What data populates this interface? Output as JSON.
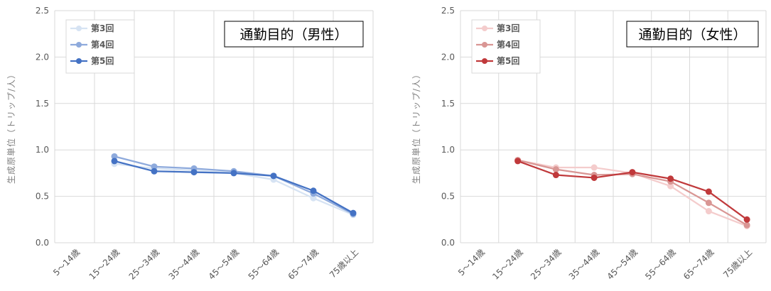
{
  "charts": [
    {
      "title": "通勤目的（男性）",
      "ylabel": "生成原単位（トリップ/人）"
    },
    {
      "title": "通勤目的（女性）",
      "ylabel": "生成原単位（トリップ/人）"
    }
  ],
  "chart_data": [
    {
      "type": "line",
      "title": "通勤目的（男性）",
      "xlabel": "",
      "ylabel": "生成原単位（トリップ/人）",
      "ylim": [
        0,
        2.5
      ],
      "yticks": [
        "0.0",
        "0.5",
        "1.0",
        "1.5",
        "2.0",
        "2.5"
      ],
      "categories": [
        "5～14歳",
        "15～24歳",
        "25～34歳",
        "35～44歳",
        "45～54歳",
        "55～64歳",
        "65～74歳",
        "75歳以上"
      ],
      "grid": true,
      "legend": "top-left",
      "series": [
        {
          "name": "第3回",
          "color": "#d6e3f3",
          "values": [
            null,
            0.85,
            0.8,
            0.78,
            0.75,
            0.68,
            0.48,
            0.3
          ]
        },
        {
          "name": "第4回",
          "color": "#8eaadc",
          "values": [
            null,
            0.93,
            0.82,
            0.8,
            0.77,
            0.72,
            0.53,
            0.31
          ]
        },
        {
          "name": "第5回",
          "color": "#4472c4",
          "values": [
            null,
            0.88,
            0.77,
            0.76,
            0.75,
            0.72,
            0.56,
            0.32
          ]
        }
      ]
    },
    {
      "type": "line",
      "title": "通勤目的（女性）",
      "xlabel": "",
      "ylabel": "生成原単位（トリップ/人）",
      "ylim": [
        0,
        2.5
      ],
      "yticks": [
        "0.0",
        "0.5",
        "1.0",
        "1.5",
        "2.0",
        "2.5"
      ],
      "categories": [
        "5～14歳",
        "15～24歳",
        "25～34歳",
        "35～44歳",
        "45～54歳",
        "55～64歳",
        "65～74歳",
        "75歳以上"
      ],
      "grid": true,
      "legend": "top-left",
      "series": [
        {
          "name": "第3回",
          "color": "#f4cccc",
          "values": [
            null,
            0.89,
            0.81,
            0.81,
            0.75,
            0.61,
            0.34,
            0.18
          ]
        },
        {
          "name": "第4回",
          "color": "#d99694",
          "values": [
            null,
            0.89,
            0.79,
            0.73,
            0.74,
            0.66,
            0.43,
            0.19
          ]
        },
        {
          "name": "第5回",
          "color": "#c0393b",
          "values": [
            null,
            0.88,
            0.73,
            0.7,
            0.76,
            0.69,
            0.55,
            0.25
          ]
        }
      ]
    }
  ]
}
